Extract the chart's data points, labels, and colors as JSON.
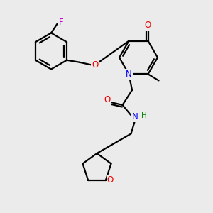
{
  "bg_color": "#ebebeb",
  "bond_color": "#000000",
  "bond_width": 1.6,
  "atom_colors": {
    "N": "#0000ee",
    "O": "#ee0000",
    "F": "#cc00cc",
    "H": "#008800",
    "C": "#000000"
  },
  "font_size": 8.5,
  "fig_w": 3.0,
  "fig_h": 3.0,
  "dpi": 100,
  "xlim": [
    0,
    10
  ],
  "ylim": [
    0,
    10
  ]
}
